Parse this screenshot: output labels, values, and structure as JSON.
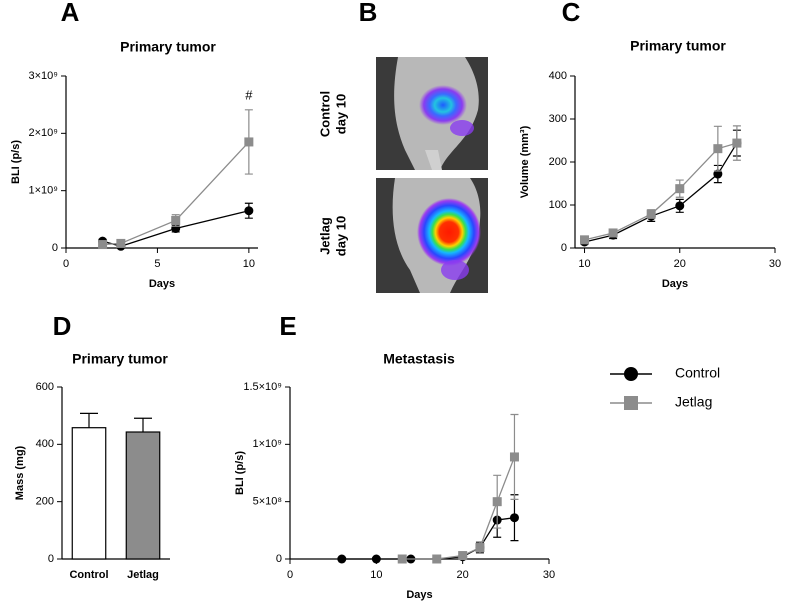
{
  "chart_data": [
    {
      "panel": "A",
      "type": "line",
      "title": "Primary tumor",
      "xlabel": "Days",
      "ylabel": "BLI (p/s)",
      "xlim": [
        0,
        10.5
      ],
      "xticks": [
        0,
        5,
        10
      ],
      "ylim": [
        0,
        3000000000
      ],
      "yticks": [
        0,
        {
          "value": 1000000000,
          "label": "1×10⁹"
        },
        {
          "value": 2000000000,
          "label": "2×10⁹"
        },
        {
          "value": 3000000000,
          "label": "3×10⁹"
        }
      ],
      "series": [
        {
          "name": "Control",
          "color": "#000000",
          "marker": "circle",
          "x": [
            2,
            3,
            6,
            10
          ],
          "values": [
            120000000,
            30000000,
            340000000,
            650000000
          ],
          "errors": [
            30000000,
            20000000,
            60000000,
            130000000
          ]
        },
        {
          "name": "Jetlag",
          "color": "#8c8c8c",
          "marker": "square",
          "x": [
            2,
            3,
            6,
            10
          ],
          "values": [
            60000000,
            80000000,
            480000000,
            1850000000
          ],
          "errors": [
            20000000,
            30000000,
            100000000,
            560000000
          ]
        }
      ],
      "annotations": [
        {
          "text": "#",
          "series": 1,
          "point": 3
        }
      ]
    },
    {
      "panel": "C",
      "type": "line",
      "title": "Primary tumor",
      "xlabel": "Days",
      "ylabel": "Volume (mm³)",
      "xlim": [
        9,
        30
      ],
      "xticks": [
        10,
        20,
        30
      ],
      "ylim": [
        0,
        400
      ],
      "yticks": [
        0,
        100,
        200,
        300,
        400
      ],
      "series": [
        {
          "name": "Control",
          "color": "#000000",
          "marker": "circle",
          "x": [
            10,
            13,
            17,
            20,
            24,
            26
          ],
          "values": [
            14,
            30,
            74,
            98,
            172,
            244
          ],
          "errors": [
            5,
            8,
            12,
            15,
            20,
            30
          ]
        },
        {
          "name": "Jetlag",
          "color": "#8c8c8c",
          "marker": "square",
          "x": [
            10,
            13,
            17,
            20,
            24,
            26
          ],
          "values": [
            19,
            35,
            79,
            138,
            231,
            244
          ],
          "errors": [
            5,
            8,
            10,
            20,
            52,
            40
          ]
        }
      ]
    },
    {
      "panel": "D",
      "type": "bar",
      "title": "Primary tumor",
      "ylabel": "Mass (mg)",
      "categories": [
        "Control",
        "Jetlag"
      ],
      "values": [
        458,
        443
      ],
      "errors": [
        50,
        48
      ],
      "colors": [
        "#ffffff",
        "#8c8c8c"
      ],
      "ylim": [
        0,
        600
      ],
      "yticks": [
        0,
        200,
        400,
        600
      ]
    },
    {
      "panel": "E",
      "type": "line",
      "title": "Metastasis",
      "xlabel": "Days",
      "ylabel": "BLI (p/s)",
      "xlim": [
        0,
        30
      ],
      "xticks": [
        0,
        10,
        20,
        30
      ],
      "ylim": [
        0,
        1500000000
      ],
      "yticks": [
        0,
        {
          "value": 500000000,
          "label": "5×10⁸"
        },
        {
          "value": 1000000000,
          "label": "1×10⁹"
        },
        {
          "value": 1500000000,
          "label": "1.5×10⁹"
        }
      ],
      "series": [
        {
          "name": "Control",
          "color": "#000000",
          "marker": "circle",
          "x": [
            6,
            10,
            14,
            17,
            20,
            22,
            24,
            26
          ],
          "values": [
            0,
            0,
            0,
            0,
            20000000,
            100000000,
            340000000,
            360000000
          ],
          "errors": [
            0,
            0,
            0,
            0,
            10000000,
            40000000,
            150000000,
            200000000
          ]
        },
        {
          "name": "Jetlag",
          "color": "#8c8c8c",
          "marker": "square",
          "x": [
            13,
            17,
            20,
            22,
            24,
            26
          ],
          "values": [
            0,
            0,
            30000000,
            100000000,
            500000000,
            890000000
          ],
          "errors": [
            0,
            0,
            15000000,
            50000000,
            230000000,
            370000000
          ]
        }
      ]
    }
  ],
  "images": {
    "panel": "B",
    "labels": [
      [
        "Control",
        "day 10"
      ],
      [
        "Jetlag",
        "day 10"
      ]
    ]
  }
}
